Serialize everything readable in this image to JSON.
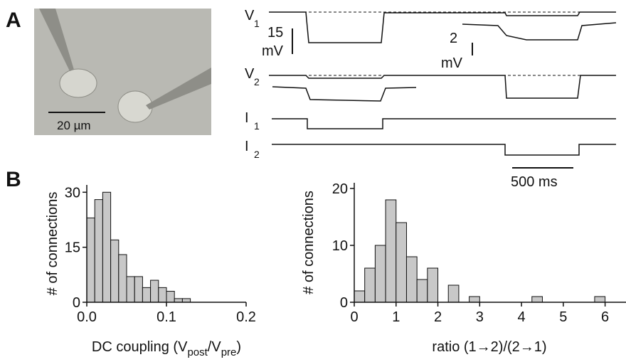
{
  "panel_labels": [
    "A",
    "B"
  ],
  "panel_a": {
    "micrograph_scale": "20 µm",
    "trace_labels": [
      {
        "name": "V",
        "sub": "1"
      },
      {
        "name": "V",
        "sub": "2"
      },
      {
        "name": "I",
        "sub": "1"
      },
      {
        "name": "I",
        "sub": "2"
      }
    ],
    "scale_bars": [
      {
        "value": "15",
        "unit": "mV"
      },
      {
        "value": "2",
        "unit": "mV"
      }
    ],
    "time_bar": "500 ms"
  },
  "chart_data": [
    {
      "type": "histogram",
      "ylabel": "# of connections",
      "xlabel": [
        "DC coupling (V",
        "post",
        "/V",
        "pre",
        ")"
      ],
      "bins": [
        0,
        0.01,
        0.02,
        0.03,
        0.04,
        0.05,
        0.06,
        0.07,
        0.08,
        0.09,
        0.1,
        0.11,
        0.12,
        0.13
      ],
      "values": [
        23,
        28,
        30,
        17,
        13,
        7,
        7,
        4,
        6,
        4,
        3,
        1,
        1
      ],
      "color": "#c8c8c8",
      "xlim": [
        0,
        0.2
      ],
      "xticks": [
        {
          "value": 0,
          "label": "0.0"
        },
        0.1,
        0.2
      ],
      "ylim": [
        0,
        32
      ],
      "yticks": [
        0,
        15,
        30
      ]
    },
    {
      "type": "histogram",
      "ylabel": "# of connections",
      "xlabel": [
        "ratio (1→2)/(2→1)"
      ],
      "bins": [
        0,
        0.25,
        0.5,
        0.75,
        1,
        1.25,
        1.5,
        1.75,
        2,
        2.25,
        2.5,
        2.75,
        3,
        3.25,
        3.5,
        3.75,
        4,
        4.25,
        4.5,
        4.75,
        5,
        5.25,
        5.5,
        5.75,
        6
      ],
      "values": [
        2,
        6,
        10,
        18,
        14,
        8,
        4,
        6,
        0,
        3,
        0,
        1,
        0,
        0,
        0,
        0,
        0,
        1,
        0,
        0,
        0,
        0,
        0,
        1
      ],
      "color": "#c8c8c8",
      "xlim": [
        0,
        6.5
      ],
      "xticks": [
        0,
        1,
        2,
        3,
        4,
        5,
        6
      ],
      "ylim": [
        0,
        21
      ],
      "yticks": [
        0,
        10,
        20
      ]
    }
  ]
}
